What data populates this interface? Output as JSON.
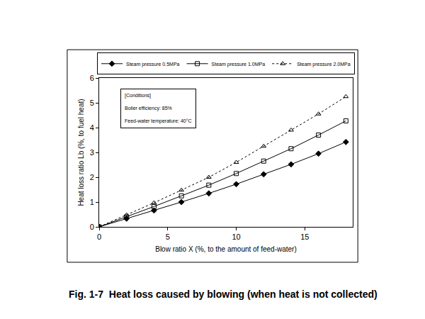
{
  "chart_data": {
    "type": "line",
    "caption": "Fig. 1-7  Heat loss caused by blowing (when heat is not collected)",
    "x_label": "Blow ratio X (%, to the amount of feed-water)",
    "y_label": "Heat loss ratio Lb (%, to fuel heat)",
    "annotations": [
      "[Conditions]",
      "Boiler efficiency: 85%",
      "Feed-water temperature: 40°C"
    ],
    "x": [
      0,
      2,
      4,
      6,
      8,
      10,
      12,
      14,
      16,
      18
    ],
    "series": [
      {
        "name": "Steam pressure 0.5MPa",
        "color": "#000000",
        "marker": "diamond",
        "line_style": "solid",
        "values": [
          0,
          0.33,
          0.66,
          1.0,
          1.35,
          1.72,
          2.12,
          2.52,
          2.95,
          3.42
        ]
      },
      {
        "name": "Steam pressure 1.0MPa",
        "color": "#000000",
        "marker": "square-open",
        "line_style": "solid",
        "values": [
          0,
          0.4,
          0.82,
          1.25,
          1.68,
          2.15,
          2.65,
          3.15,
          3.7,
          4.27
        ]
      },
      {
        "name": "Steam pressure 2.0MPa",
        "color": "#000000",
        "marker": "triangle-up-open",
        "line_style": "dot",
        "values": [
          0,
          0.48,
          0.97,
          1.48,
          2.0,
          2.6,
          3.25,
          3.9,
          4.55,
          5.25
        ]
      }
    ],
    "xlim": [
      0,
      18.5
    ],
    "xticks": [
      0,
      5,
      10,
      15
    ],
    "ylim": [
      0,
      6
    ],
    "yticks": [
      0,
      1,
      2,
      3,
      4,
      5,
      6
    ],
    "grid": false,
    "legend": "top"
  }
}
